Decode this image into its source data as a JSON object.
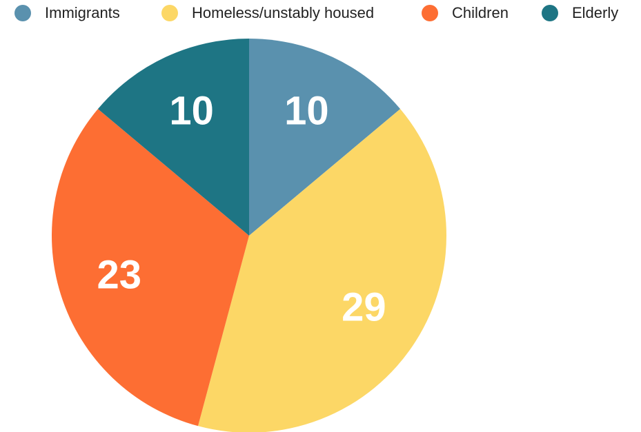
{
  "chart_data": {
    "type": "pie",
    "categories": [
      "Immigrants",
      "Homeless/unstably housed",
      "Children",
      "Elderly"
    ],
    "values": [
      10,
      29,
      23,
      10
    ],
    "colors": [
      "#5a91ae",
      "#fcd766",
      "#fd6e33",
      "#1e7584"
    ],
    "legend": "top"
  }
}
